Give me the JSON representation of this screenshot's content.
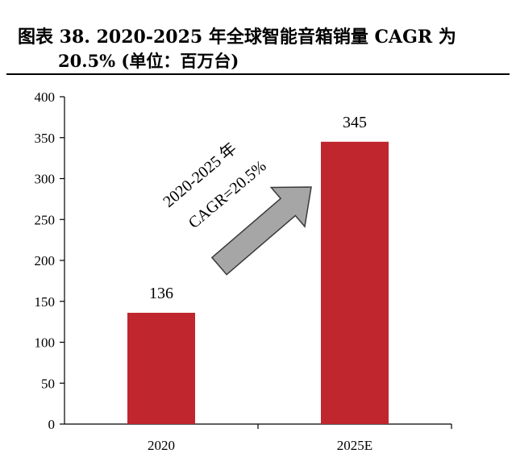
{
  "title": {
    "line1": "图表 38. 2020-2025 年全球智能音箱销量 CAGR 为",
    "line2": "20.5% (单位：百万台)"
  },
  "chart_data": {
    "type": "bar",
    "categories": [
      "2020",
      "2025E"
    ],
    "values": [
      136,
      345
    ],
    "data_labels": [
      "136",
      "345"
    ],
    "ylim": [
      0,
      400
    ],
    "yticks": [
      0,
      50,
      100,
      150,
      200,
      250,
      300,
      350,
      400
    ],
    "xlabel": "",
    "ylabel": "",
    "grid": false,
    "legend": "none",
    "bar_color": "#C0262D",
    "annotation": {
      "line1": "2020-2025 年",
      "line2": "CAGR=20.5%",
      "arrow_color": "#A6A6A6"
    }
  }
}
